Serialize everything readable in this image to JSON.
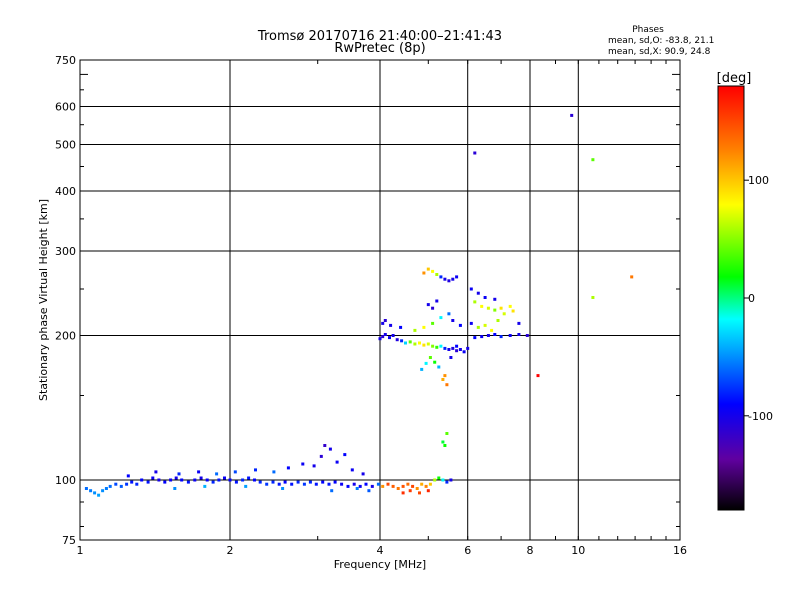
{
  "title_line1": "Tromsø 20170716 21:40:00–21:41:43",
  "title_line2": "RwPretec (8p)",
  "stats": {
    "heading": "Phases",
    "line1": "mean, sd,O:  -83.8, 21.1",
    "line2": "mean, sd,X:  90.9, 24.8"
  },
  "colorbar": {
    "label": "[deg]",
    "ticks": [
      "100",
      "0",
      "-100"
    ],
    "tick_values": [
      100,
      0,
      -100
    ],
    "range": [
      -180,
      180
    ]
  },
  "chart_data": {
    "type": "scatter",
    "xlabel": "Frequency [MHz]",
    "ylabel": "Stationary phase Virtual Height [km]",
    "xscale": "log",
    "yscale": "log",
    "xlim": [
      1,
      16
    ],
    "ylim": [
      75,
      750
    ],
    "x_ticks": [
      1,
      2,
      4,
      6,
      8,
      10,
      16
    ],
    "x_tick_labels": [
      "1",
      "2",
      "4",
      "6",
      "8",
      "10",
      "16"
    ],
    "y_ticks": [
      75,
      100,
      200,
      300,
      400,
      500,
      600,
      750
    ],
    "y_tick_labels": [
      "75",
      "100",
      "200",
      "300",
      "400",
      "500",
      "600",
      "750"
    ],
    "x_gridlines": [
      2,
      4,
      6,
      8,
      10
    ],
    "y_gridlines": [
      100,
      200,
      300,
      400,
      500,
      600
    ],
    "grid": true,
    "points": [
      [
        1.03,
        96,
        -60
      ],
      [
        1.05,
        95,
        -55
      ],
      [
        1.07,
        94,
        -50
      ],
      [
        1.09,
        93,
        -45
      ],
      [
        1.11,
        95,
        -50
      ],
      [
        1.13,
        96,
        -55
      ],
      [
        1.15,
        97,
        -60
      ],
      [
        1.18,
        98,
        -70
      ],
      [
        1.21,
        97,
        -65
      ],
      [
        1.24,
        98,
        -75
      ],
      [
        1.27,
        99,
        -85
      ],
      [
        1.3,
        98,
        -80
      ],
      [
        1.33,
        100,
        -90
      ],
      [
        1.37,
        99,
        -85
      ],
      [
        1.4,
        101,
        -95
      ],
      [
        1.44,
        100,
        -100
      ],
      [
        1.48,
        99,
        -90
      ],
      [
        1.52,
        100,
        -95
      ],
      [
        1.56,
        101,
        -100
      ],
      [
        1.6,
        100,
        -90
      ],
      [
        1.65,
        99,
        -85
      ],
      [
        1.7,
        100,
        -95
      ],
      [
        1.75,
        101,
        -100
      ],
      [
        1.8,
        100,
        -90
      ],
      [
        1.85,
        99,
        -80
      ],
      [
        1.9,
        100,
        -85
      ],
      [
        1.95,
        101,
        -95
      ],
      [
        2.0,
        100,
        -90
      ],
      [
        2.06,
        99,
        -85
      ],
      [
        2.12,
        100,
        -80
      ],
      [
        2.18,
        101,
        -85
      ],
      [
        2.24,
        100,
        -90
      ],
      [
        2.3,
        99,
        -80
      ],
      [
        2.37,
        98,
        -75
      ],
      [
        2.44,
        99,
        -80
      ],
      [
        2.51,
        98,
        -85
      ],
      [
        2.58,
        99,
        -90
      ],
      [
        2.66,
        98,
        -85
      ],
      [
        2.74,
        99,
        -80
      ],
      [
        2.82,
        98,
        -75
      ],
      [
        2.9,
        99,
        -80
      ],
      [
        2.98,
        98,
        -85
      ],
      [
        3.07,
        99,
        -90
      ],
      [
        3.16,
        98,
        -85
      ],
      [
        3.25,
        99,
        -90
      ],
      [
        3.35,
        98,
        -95
      ],
      [
        3.45,
        97,
        -90
      ],
      [
        3.55,
        98,
        -100
      ],
      [
        3.65,
        97,
        -95
      ],
      [
        3.75,
        98,
        -90
      ],
      [
        3.86,
        97,
        -100
      ],
      [
        3.97,
        98,
        -60
      ],
      [
        4.05,
        97,
        120
      ],
      [
        4.15,
        98,
        150
      ],
      [
        4.25,
        97,
        140
      ],
      [
        4.35,
        96,
        130
      ],
      [
        4.45,
        97,
        145
      ],
      [
        4.55,
        98,
        135
      ],
      [
        4.65,
        97,
        150
      ],
      [
        4.75,
        96,
        120
      ],
      [
        4.85,
        98,
        110
      ],
      [
        4.95,
        97,
        125
      ],
      [
        5.05,
        98,
        100
      ],
      [
        5.15,
        100,
        60
      ],
      [
        5.25,
        101,
        20
      ],
      [
        5.35,
        100,
        -20
      ],
      [
        5.45,
        99,
        -80
      ],
      [
        5.55,
        100,
        -100
      ],
      [
        1.25,
        102,
        -90
      ],
      [
        1.42,
        104,
        -100
      ],
      [
        1.58,
        103,
        -80
      ],
      [
        1.73,
        104,
        -95
      ],
      [
        1.88,
        103,
        -60
      ],
      [
        2.05,
        104,
        -70
      ],
      [
        2.25,
        105,
        -80
      ],
      [
        2.45,
        104,
        -60
      ],
      [
        2.62,
        106,
        -90
      ],
      [
        2.8,
        108,
        -95
      ],
      [
        2.95,
        107,
        -100
      ],
      [
        3.05,
        112,
        -110
      ],
      [
        3.1,
        118,
        -115
      ],
      [
        3.18,
        116,
        -100
      ],
      [
        3.28,
        109,
        -95
      ],
      [
        3.4,
        113,
        -90
      ],
      [
        3.52,
        105,
        -95
      ],
      [
        3.7,
        103,
        -100
      ],
      [
        1.55,
        96,
        -50
      ],
      [
        1.78,
        97,
        -40
      ],
      [
        2.15,
        97,
        -45
      ],
      [
        2.55,
        96,
        -50
      ],
      [
        3.2,
        95,
        -60
      ],
      [
        3.6,
        96,
        -55
      ],
      [
        3.8,
        95,
        -65
      ],
      [
        4.45,
        94,
        160
      ],
      [
        4.6,
        95,
        155
      ],
      [
        4.8,
        94,
        150
      ],
      [
        5.0,
        95,
        165
      ],
      [
        5.4,
        118,
        20
      ],
      [
        5.45,
        125,
        40
      ],
      [
        5.35,
        120,
        10
      ],
      [
        4.0,
        197,
        -100
      ],
      [
        4.05,
        199,
        -110
      ],
      [
        4.1,
        201,
        -100
      ],
      [
        4.18,
        198,
        -95
      ],
      [
        4.25,
        200,
        -100
      ],
      [
        4.33,
        196,
        -105
      ],
      [
        4.42,
        195,
        -80
      ],
      [
        4.5,
        193,
        -30
      ],
      [
        4.6,
        194,
        40
      ],
      [
        4.7,
        192,
        60
      ],
      [
        4.8,
        193,
        80
      ],
      [
        4.9,
        191,
        90
      ],
      [
        5.0,
        192,
        70
      ],
      [
        5.1,
        190,
        50
      ],
      [
        5.2,
        189,
        30
      ],
      [
        5.3,
        190,
        -20
      ],
      [
        5.4,
        188,
        -80
      ],
      [
        5.5,
        187,
        -100
      ],
      [
        5.6,
        188,
        -105
      ],
      [
        5.7,
        186,
        -110
      ],
      [
        5.8,
        187,
        -100
      ],
      [
        5.9,
        185,
        -95
      ],
      [
        6.0,
        188,
        -100
      ],
      [
        6.2,
        198,
        -90
      ],
      [
        6.4,
        199,
        -95
      ],
      [
        6.6,
        200,
        -100
      ],
      [
        6.8,
        201,
        -90
      ],
      [
        7.0,
        199,
        -80
      ],
      [
        7.3,
        200,
        -95
      ],
      [
        7.6,
        201,
        -100
      ],
      [
        7.9,
        200,
        -110
      ],
      [
        4.05,
        212,
        -100
      ],
      [
        4.1,
        215,
        -110
      ],
      [
        4.2,
        210,
        -100
      ],
      [
        4.4,
        208,
        -90
      ],
      [
        4.7,
        205,
        60
      ],
      [
        4.9,
        208,
        80
      ],
      [
        5.1,
        212,
        40
      ],
      [
        5.3,
        218,
        -20
      ],
      [
        5.5,
        222,
        -60
      ],
      [
        5.6,
        215,
        -100
      ],
      [
        5.8,
        210,
        -90
      ],
      [
        6.1,
        212,
        -95
      ],
      [
        6.3,
        208,
        60
      ],
      [
        6.5,
        210,
        70
      ],
      [
        6.7,
        205,
        80
      ],
      [
        6.9,
        215,
        60
      ],
      [
        7.1,
        222,
        70
      ],
      [
        7.4,
        225,
        90
      ],
      [
        7.6,
        212,
        -100
      ],
      [
        6.2,
        235,
        60
      ],
      [
        6.4,
        230,
        80
      ],
      [
        6.6,
        228,
        70
      ],
      [
        6.8,
        226,
        50
      ],
      [
        7.0,
        228,
        90
      ],
      [
        7.3,
        230,
        80
      ],
      [
        5.0,
        232,
        -100
      ],
      [
        5.1,
        228,
        -110
      ],
      [
        5.2,
        236,
        -100
      ],
      [
        4.9,
        270,
        120
      ],
      [
        5.0,
        275,
        100
      ],
      [
        5.1,
        272,
        80
      ],
      [
        5.2,
        268,
        60
      ],
      [
        5.3,
        265,
        -80
      ],
      [
        5.4,
        262,
        -100
      ],
      [
        5.5,
        260,
        -105
      ],
      [
        5.6,
        262,
        -100
      ],
      [
        5.7,
        265,
        -95
      ],
      [
        5.05,
        180,
        40
      ],
      [
        5.15,
        176,
        20
      ],
      [
        5.25,
        172,
        -40
      ],
      [
        5.4,
        165,
        120
      ],
      [
        5.45,
        158,
        130
      ],
      [
        5.35,
        162,
        110
      ],
      [
        4.95,
        175,
        -20
      ],
      [
        4.85,
        170,
        -40
      ],
      [
        5.55,
        180,
        -100
      ],
      [
        5.7,
        190,
        -90
      ],
      [
        6.3,
        245,
        -100
      ],
      [
        6.5,
        240,
        -95
      ],
      [
        6.8,
        238,
        -100
      ],
      [
        6.1,
        250,
        -95
      ],
      [
        8.3,
        165,
        180
      ],
      [
        9.7,
        575,
        -110
      ],
      [
        6.2,
        480,
        -110
      ],
      [
        10.7,
        465,
        40
      ],
      [
        10.7,
        240,
        60
      ],
      [
        12.8,
        265,
        130
      ]
    ]
  }
}
